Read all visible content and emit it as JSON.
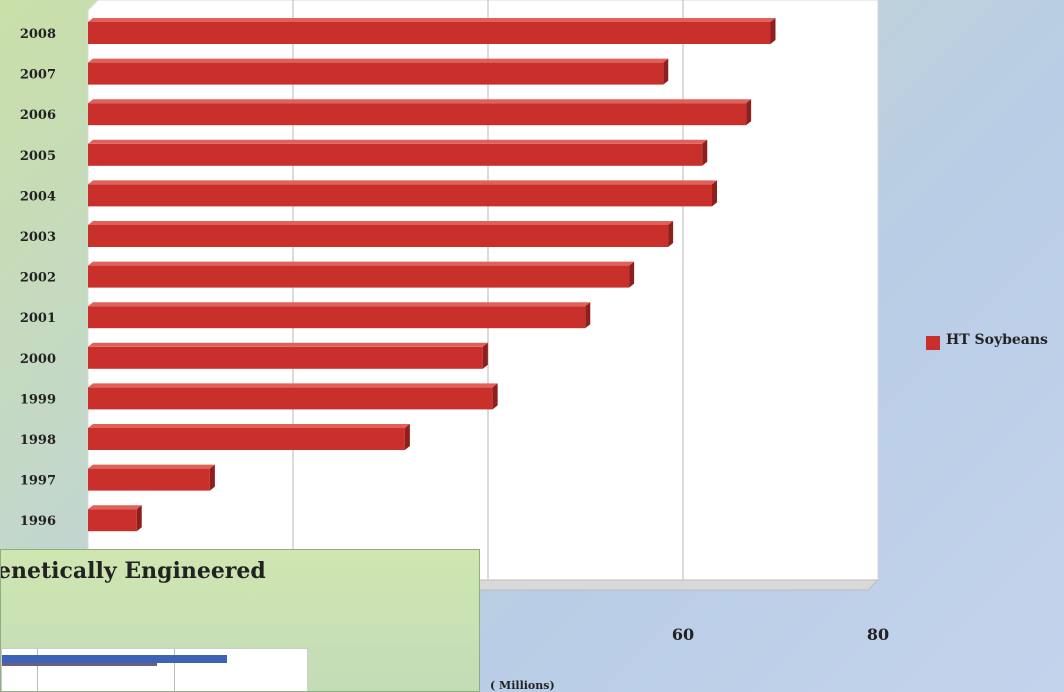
{
  "chart_data": {
    "type": "bar",
    "orientation": "horizontal",
    "categories": [
      "2008",
      "2007",
      "2006",
      "2005",
      "2004",
      "2003",
      "2002",
      "2001",
      "2000",
      "1999",
      "1998",
      "1997",
      "1996"
    ],
    "series": [
      {
        "name": "HT Soybeans",
        "color": "#c9302c",
        "values": [
          70,
          59,
          67.5,
          63,
          64,
          59.5,
          55.5,
          51,
          40.5,
          41.5,
          32.5,
          12.5,
          5
        ]
      }
    ],
    "xlim": [
      0,
      80
    ],
    "xticks": [
      "60",
      "80"
    ],
    "xunit": "( Millions)",
    "grid": true,
    "legend": "right"
  },
  "inset": {
    "title": "enetically Engineered"
  },
  "legend_label": "HT Soybeans"
}
